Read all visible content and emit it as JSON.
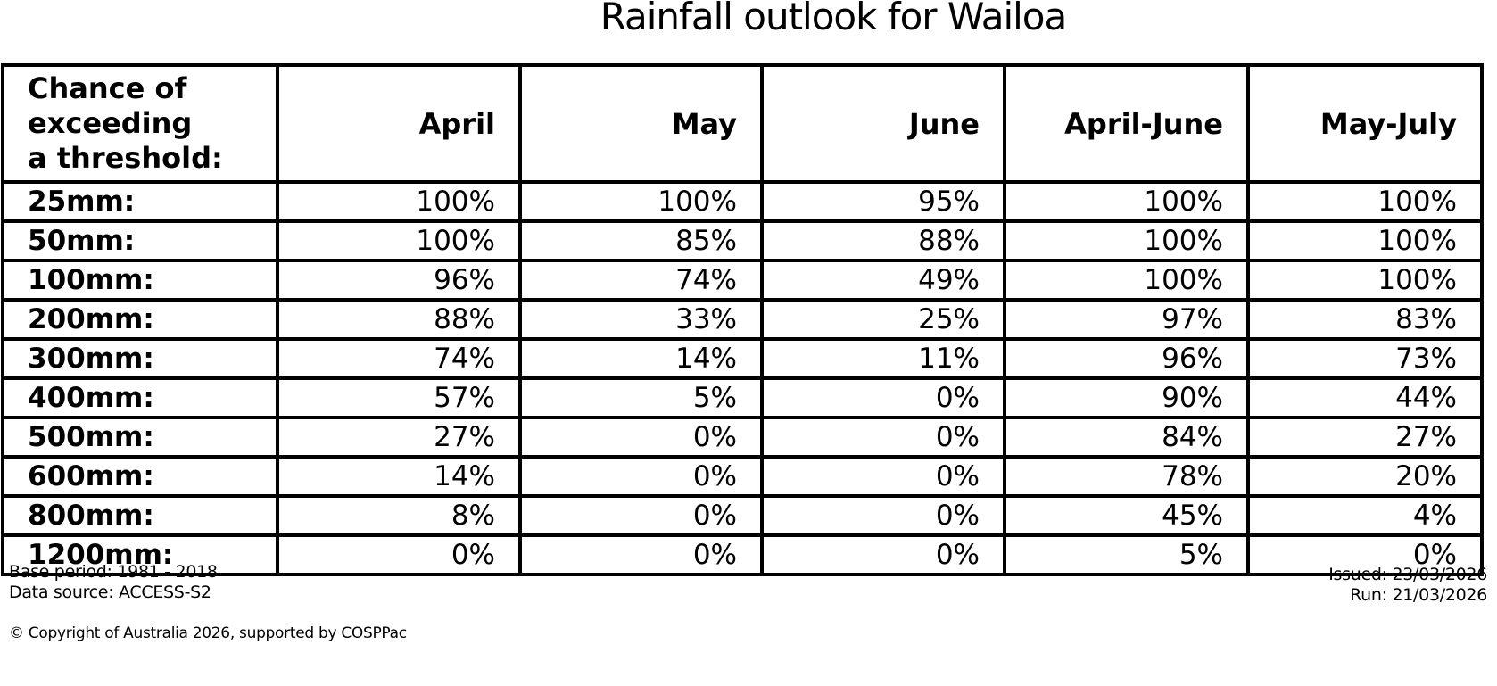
{
  "title": "Rainfall outlook for Wailoa",
  "colors": {
    "background": "#ffffff",
    "text": "#000000",
    "border": "#000000"
  },
  "table": {
    "corner_header": [
      "Chance of",
      "exceeding",
      "a threshold:"
    ],
    "columns": [
      "April",
      "May",
      "June",
      "April-June",
      "May-July"
    ],
    "rows": [
      {
        "label": "25mm:",
        "values": [
          "100%",
          "100%",
          "95%",
          "100%",
          "100%"
        ]
      },
      {
        "label": "50mm:",
        "values": [
          "100%",
          "85%",
          "88%",
          "100%",
          "100%"
        ]
      },
      {
        "label": "100mm:",
        "values": [
          "96%",
          "74%",
          "49%",
          "100%",
          "100%"
        ]
      },
      {
        "label": "200mm:",
        "values": [
          "88%",
          "33%",
          "25%",
          "97%",
          "83%"
        ]
      },
      {
        "label": "300mm:",
        "values": [
          "74%",
          "14%",
          "11%",
          "96%",
          "73%"
        ]
      },
      {
        "label": "400mm:",
        "values": [
          "57%",
          "5%",
          "0%",
          "90%",
          "44%"
        ]
      },
      {
        "label": "500mm:",
        "values": [
          "27%",
          "0%",
          "0%",
          "84%",
          "27%"
        ]
      },
      {
        "label": "600mm:",
        "values": [
          "14%",
          "0%",
          "0%",
          "78%",
          "20%"
        ]
      },
      {
        "label": "800mm:",
        "values": [
          "8%",
          "0%",
          "0%",
          "45%",
          "4%"
        ]
      },
      {
        "label": "1200mm:",
        "values": [
          "0%",
          "0%",
          "0%",
          "5%",
          "0%"
        ]
      }
    ]
  },
  "footer": {
    "base_period": "Base period: 1981 - 2018",
    "data_source": "Data source: ACCESS-S2",
    "issued": "Issued: 23/03/2026",
    "run": "Run: 21/03/2026",
    "copyright": "© Copyright of Australia 2026, supported by COSPPac"
  },
  "chart_data": {
    "type": "table",
    "title": "Rainfall outlook for Wailoa",
    "row_header": "Chance of exceeding a threshold:",
    "columns": [
      "April",
      "May",
      "June",
      "April-June",
      "May-July"
    ],
    "thresholds_mm": [
      25,
      50,
      100,
      200,
      300,
      400,
      500,
      600,
      800,
      1200
    ],
    "percent_chance": {
      "April": [
        100,
        100,
        96,
        88,
        74,
        57,
        27,
        14,
        8,
        0
      ],
      "May": [
        100,
        85,
        74,
        33,
        14,
        5,
        0,
        0,
        0,
        0
      ],
      "June": [
        95,
        88,
        49,
        25,
        11,
        0,
        0,
        0,
        0,
        0
      ],
      "April-June": [
        100,
        100,
        100,
        97,
        96,
        90,
        84,
        78,
        45,
        5
      ],
      "May-July": [
        100,
        100,
        100,
        83,
        73,
        44,
        27,
        20,
        4,
        0
      ]
    },
    "base_period": "1981 - 2018",
    "data_source": "ACCESS-S2",
    "issued": "23/03/2026",
    "run": "21/03/2026"
  }
}
